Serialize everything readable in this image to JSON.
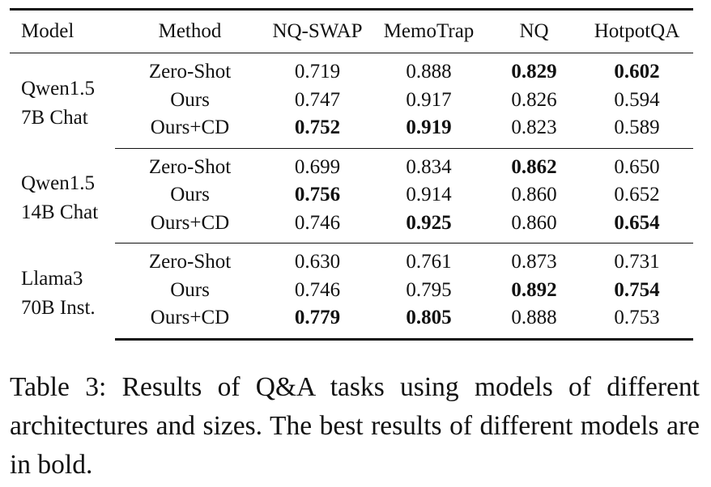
{
  "table": {
    "headers": [
      "Model",
      "Method",
      "NQ-SWAP",
      "MemoTrap",
      "NQ",
      "HotpotQA"
    ],
    "groups": [
      {
        "model_line1": "Qwen1.5",
        "model_line2": "7B Chat",
        "rows": [
          {
            "method": "Zero-Shot",
            "values": [
              "0.719",
              "0.888",
              "0.829",
              "0.602"
            ],
            "bold": [
              false,
              false,
              true,
              true
            ]
          },
          {
            "method": "Ours",
            "values": [
              "0.747",
              "0.917",
              "0.826",
              "0.594"
            ],
            "bold": [
              false,
              false,
              false,
              false
            ]
          },
          {
            "method": "Ours+CD",
            "values": [
              "0.752",
              "0.919",
              "0.823",
              "0.589"
            ],
            "bold": [
              true,
              true,
              false,
              false
            ]
          }
        ]
      },
      {
        "model_line1": "Qwen1.5",
        "model_line2": "14B Chat",
        "rows": [
          {
            "method": "Zero-Shot",
            "values": [
              "0.699",
              "0.834",
              "0.862",
              "0.650"
            ],
            "bold": [
              false,
              false,
              true,
              false
            ]
          },
          {
            "method": "Ours",
            "values": [
              "0.756",
              "0.914",
              "0.860",
              "0.652"
            ],
            "bold": [
              true,
              false,
              false,
              false
            ]
          },
          {
            "method": "Ours+CD",
            "values": [
              "0.746",
              "0.925",
              "0.860",
              "0.654"
            ],
            "bold": [
              false,
              true,
              false,
              true
            ]
          }
        ]
      },
      {
        "model_line1": "Llama3",
        "model_line2": "70B Inst.",
        "rows": [
          {
            "method": "Zero-Shot",
            "values": [
              "0.630",
              "0.761",
              "0.873",
              "0.731"
            ],
            "bold": [
              false,
              false,
              false,
              false
            ]
          },
          {
            "method": "Ours",
            "values": [
              "0.746",
              "0.795",
              "0.892",
              "0.754"
            ],
            "bold": [
              false,
              false,
              true,
              true
            ]
          },
          {
            "method": "Ours+CD",
            "values": [
              "0.779",
              "0.805",
              "0.888",
              "0.753"
            ],
            "bold": [
              true,
              true,
              false,
              false
            ]
          }
        ]
      }
    ]
  },
  "caption": "Table 3: Results of Q&A tasks using models of different architectures and sizes. The best results of different models are in bold."
}
